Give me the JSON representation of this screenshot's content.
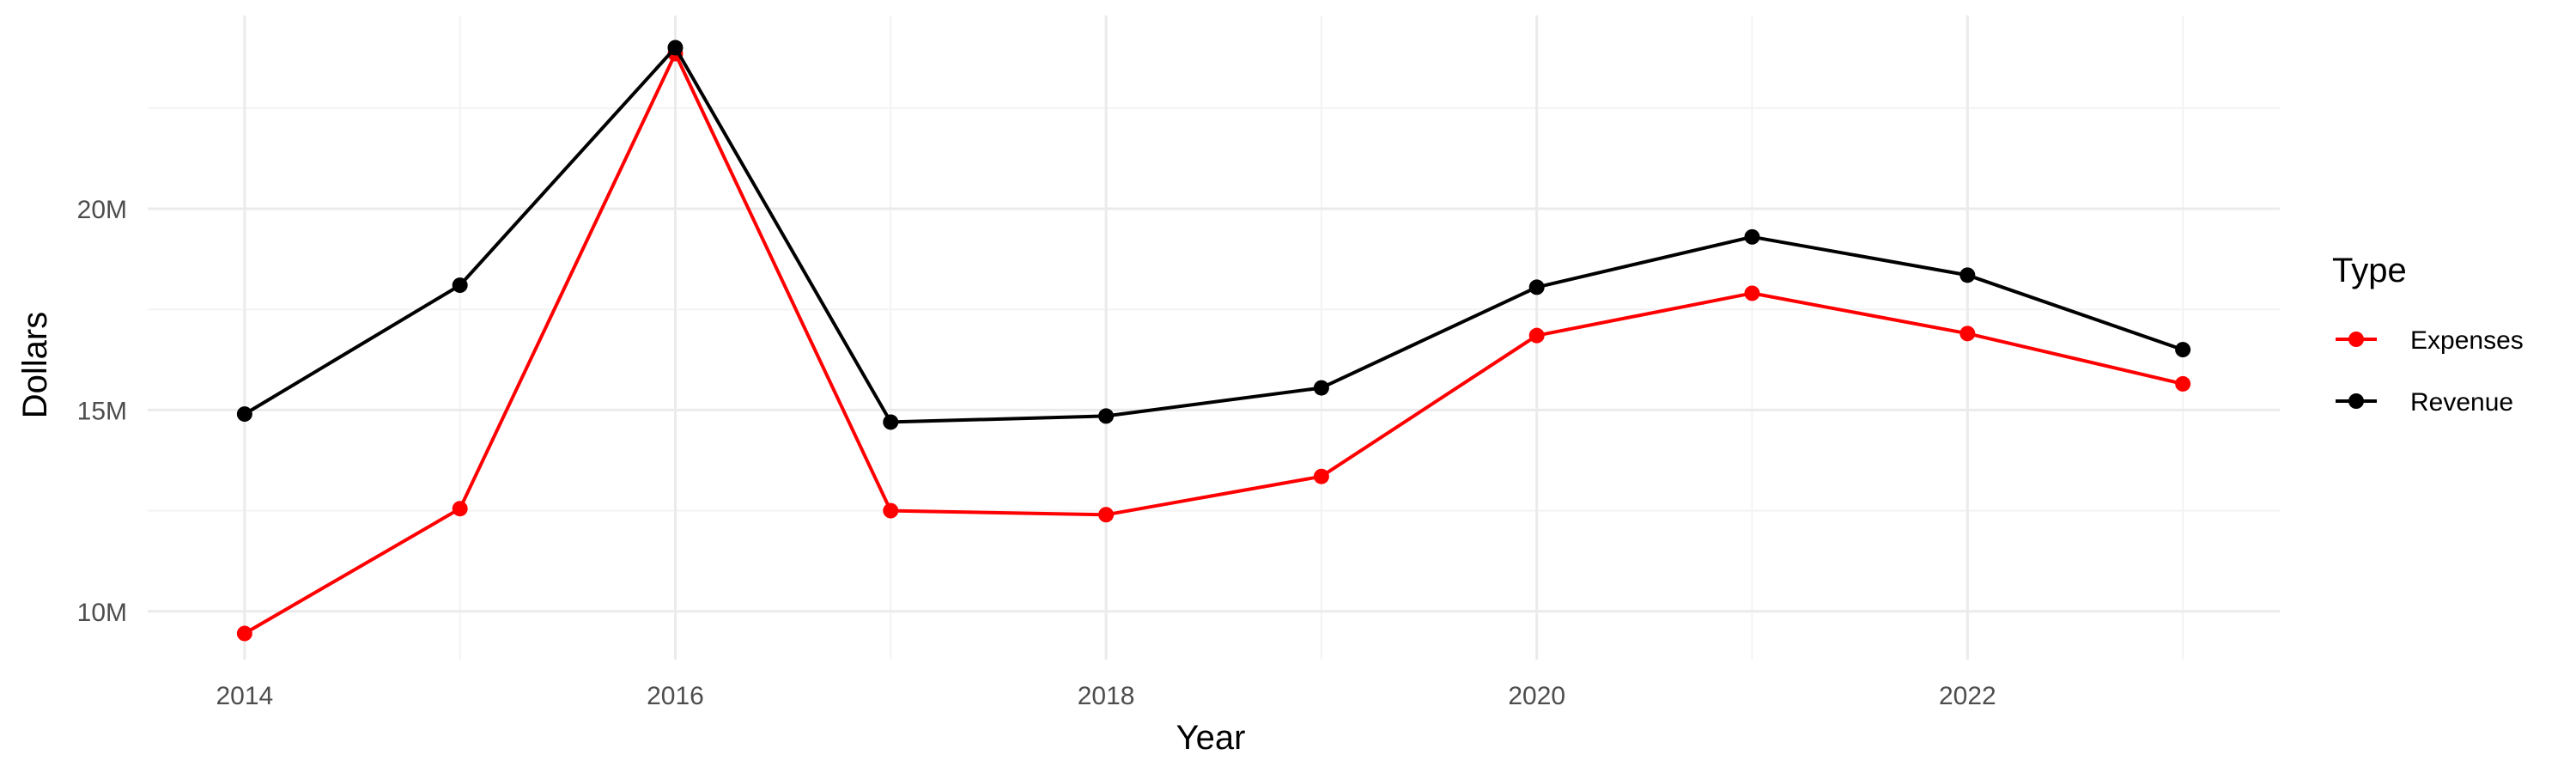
{
  "chart_data": {
    "type": "line",
    "xlabel": "Year",
    "ylabel": "Dollars",
    "x": [
      2014,
      2015,
      2016,
      2017,
      2018,
      2019,
      2020,
      2021,
      2022,
      2023
    ],
    "x_ticks": [
      2014,
      2016,
      2018,
      2020,
      2022
    ],
    "x_tick_labels": [
      "2014",
      "2016",
      "2018",
      "2020",
      "2022"
    ],
    "y_ticks": [
      10000000,
      15000000,
      20000000
    ],
    "y_tick_labels": [
      "10M",
      "15M",
      "20M"
    ],
    "xlim": [
      2013.55,
      2023.45
    ],
    "ylim": [
      8800000,
      24800000
    ],
    "grid": true,
    "legend": {
      "title": "Type",
      "position": "right"
    },
    "series": [
      {
        "name": "Expenses",
        "color": "#ff0000",
        "values": [
          9450000,
          12550000,
          23850000,
          12500000,
          12400000,
          13350000,
          16850000,
          17900000,
          16900000,
          15650000
        ]
      },
      {
        "name": "Revenue",
        "color": "#000000",
        "values": [
          14900000,
          18100000,
          24000000,
          14700000,
          14850000,
          15550000,
          18050000,
          19300000,
          18350000,
          16500000
        ]
      }
    ]
  }
}
